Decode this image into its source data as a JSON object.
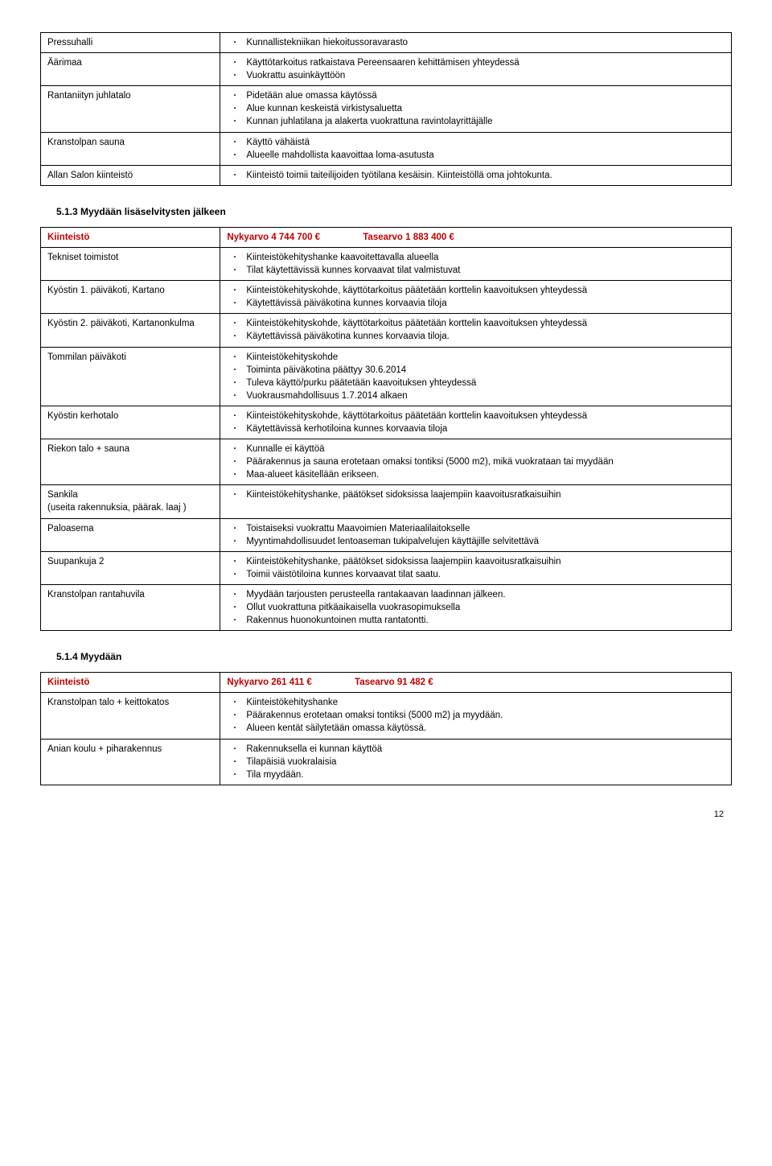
{
  "table1": {
    "rows": [
      {
        "name": "Pressuhalli",
        "items": [
          "Kunnallistekniikan hiekoitussoravarasto"
        ]
      },
      {
        "name": "Äärimaa",
        "items": [
          "Käyttötarkoitus ratkaistava Pereensaaren kehittämisen yhteydessä",
          "Vuokrattu asuinkäyttöön"
        ]
      },
      {
        "name": "Rantaniityn juhlatalo",
        "items": [
          "Pidetään alue omassa käytössä",
          "Alue kunnan keskeistä virkistysaluetta",
          "Kunnan juhlatilana ja alakerta vuokrattuna ravintolayrittäjälle"
        ]
      },
      {
        "name": "Kranstolpan sauna",
        "items": [
          "Käyttö vähäistä",
          "Alueelle mahdollista kaavoittaa loma-asutusta"
        ]
      },
      {
        "name": "Allan Salon kiinteistö",
        "items": [
          "Kiinteistö toimii taiteilijoiden työtilana kesäisin. Kiinteistöllä oma johtokunta."
        ]
      }
    ]
  },
  "section513": {
    "heading": "5.1.3  Myydään lisäselvitysten jälkeen",
    "header": {
      "label": "Kiinteistö",
      "nyky": "Nykyarvo 4 744 700 €",
      "tase": "Tasearvo 1 883 400 €"
    },
    "rows": [
      {
        "name": "Tekniset toimistot",
        "items": [
          "Kiinteistökehityshanke kaavoitettavalla alueella",
          "Tilat käytettävissä kunnes korvaavat tilat valmistuvat"
        ]
      },
      {
        "name": "Kyöstin 1. päiväkoti, Kartano",
        "items": [
          "Kiinteistökehityskohde, käyttötarkoitus päätetään korttelin kaavoituksen yhteydessä",
          "Käytettävissä päiväkotina kunnes korvaavia tiloja"
        ]
      },
      {
        "name": "Kyöstin 2. päiväkoti, Kartanonkulma",
        "items": [
          "Kiinteistökehityskohde, käyttötarkoitus päätetään korttelin kaavoituksen yhteydessä",
          "Käytettävissä päiväkotina kunnes korvaavia tiloja."
        ]
      },
      {
        "name": "Tommilan päiväkoti",
        "items": [
          "Kiinteistökehityskohde",
          "Toiminta päiväkotina päättyy 30.6.2014",
          "Tuleva käyttö/purku päätetään kaavoituksen yhteydessä",
          "Vuokrausmahdollisuus 1.7.2014 alkaen"
        ]
      },
      {
        "name": "Kyöstin kerhotalo",
        "items": [
          "Kiinteistökehityskohde, käyttötarkoitus päätetään korttelin kaavoituksen yhteydessä",
          "Käytettävissä kerhotiloina kunnes korvaavia tiloja"
        ]
      },
      {
        "name": "Riekon talo + sauna",
        "items": [
          "Kunnalle ei käyttöä",
          "Päärakennus ja sauna erotetaan omaksi tontiksi (5000 m2), mikä vuokrataan tai myydään",
          "Maa-alueet käsitellään erikseen."
        ]
      },
      {
        "name": "Sankila\n(useita rakennuksia, päärak. laaj )",
        "items": [
          "Kiinteistökehityshanke, päätökset sidoksissa laajempiin kaavoitusratkaisuihin"
        ]
      },
      {
        "name": "Paloasema",
        "items": [
          "Toistaiseksi vuokrattu Maavoimien Materiaalilaitokselle",
          "Myyntimahdollisuudet lentoaseman tukipalvelujen käyttäjille selvitettävä"
        ]
      },
      {
        "name": "Suupankuja 2",
        "items": [
          "Kiinteistökehityshanke, päätökset sidoksissa laajempiin kaavoitusratkaisuihin",
          "Toimii väistötiloina kunnes korvaavat tilat saatu."
        ]
      },
      {
        "name": "Kranstolpan rantahuvila",
        "items": [
          "Myydään tarjousten perusteella rantakaavan laadinnan jälkeen.",
          "Ollut vuokrattuna pitkäaikaisella vuokrasopimuksella",
          "Rakennus huonokuntoinen mutta rantatontti."
        ]
      }
    ]
  },
  "section514": {
    "heading": "5.1.4  Myydään",
    "header": {
      "label": "Kiinteistö",
      "nyky": "Nykyarvo 261 411 €",
      "tase": "Tasearvo 91 482 €"
    },
    "rows": [
      {
        "name": "Kranstolpan talo + keittokatos",
        "items": [
          "Kiinteistökehityshanke",
          "Päärakennus erotetaan omaksi tontiksi (5000 m2) ja myydään.",
          "Alueen kentät säilytetään omassa käytössä."
        ]
      },
      {
        "name": "Anian koulu + piharakennus",
        "items": [
          "Rakennuksella ei kunnan käyttöä",
          "Tilapäisiä vuokralaisia",
          "Tila myydään."
        ]
      }
    ]
  },
  "pageNumber": "12"
}
